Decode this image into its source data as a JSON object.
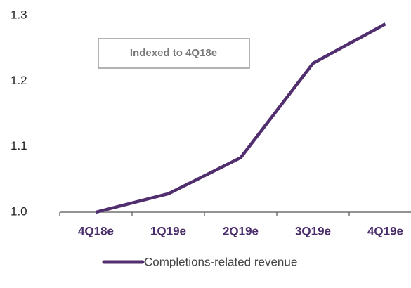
{
  "chart_data": {
    "type": "line",
    "categories": [
      "4Q18e",
      "1Q19e",
      "2Q19e",
      "3Q19e",
      "4Q19e"
    ],
    "series": [
      {
        "name": "Completions-related revenue",
        "color": "#512f6f",
        "values": [
          1.0,
          1.028,
          1.083,
          1.227,
          1.287
        ]
      }
    ],
    "ylim": [
      1.0,
      1.3
    ],
    "yticks": [
      {
        "value": 1.0,
        "label": "1.0"
      },
      1.1,
      1.2,
      1.3
    ],
    "annotation": "Indexed to 4Q18e",
    "grid": false
  }
}
